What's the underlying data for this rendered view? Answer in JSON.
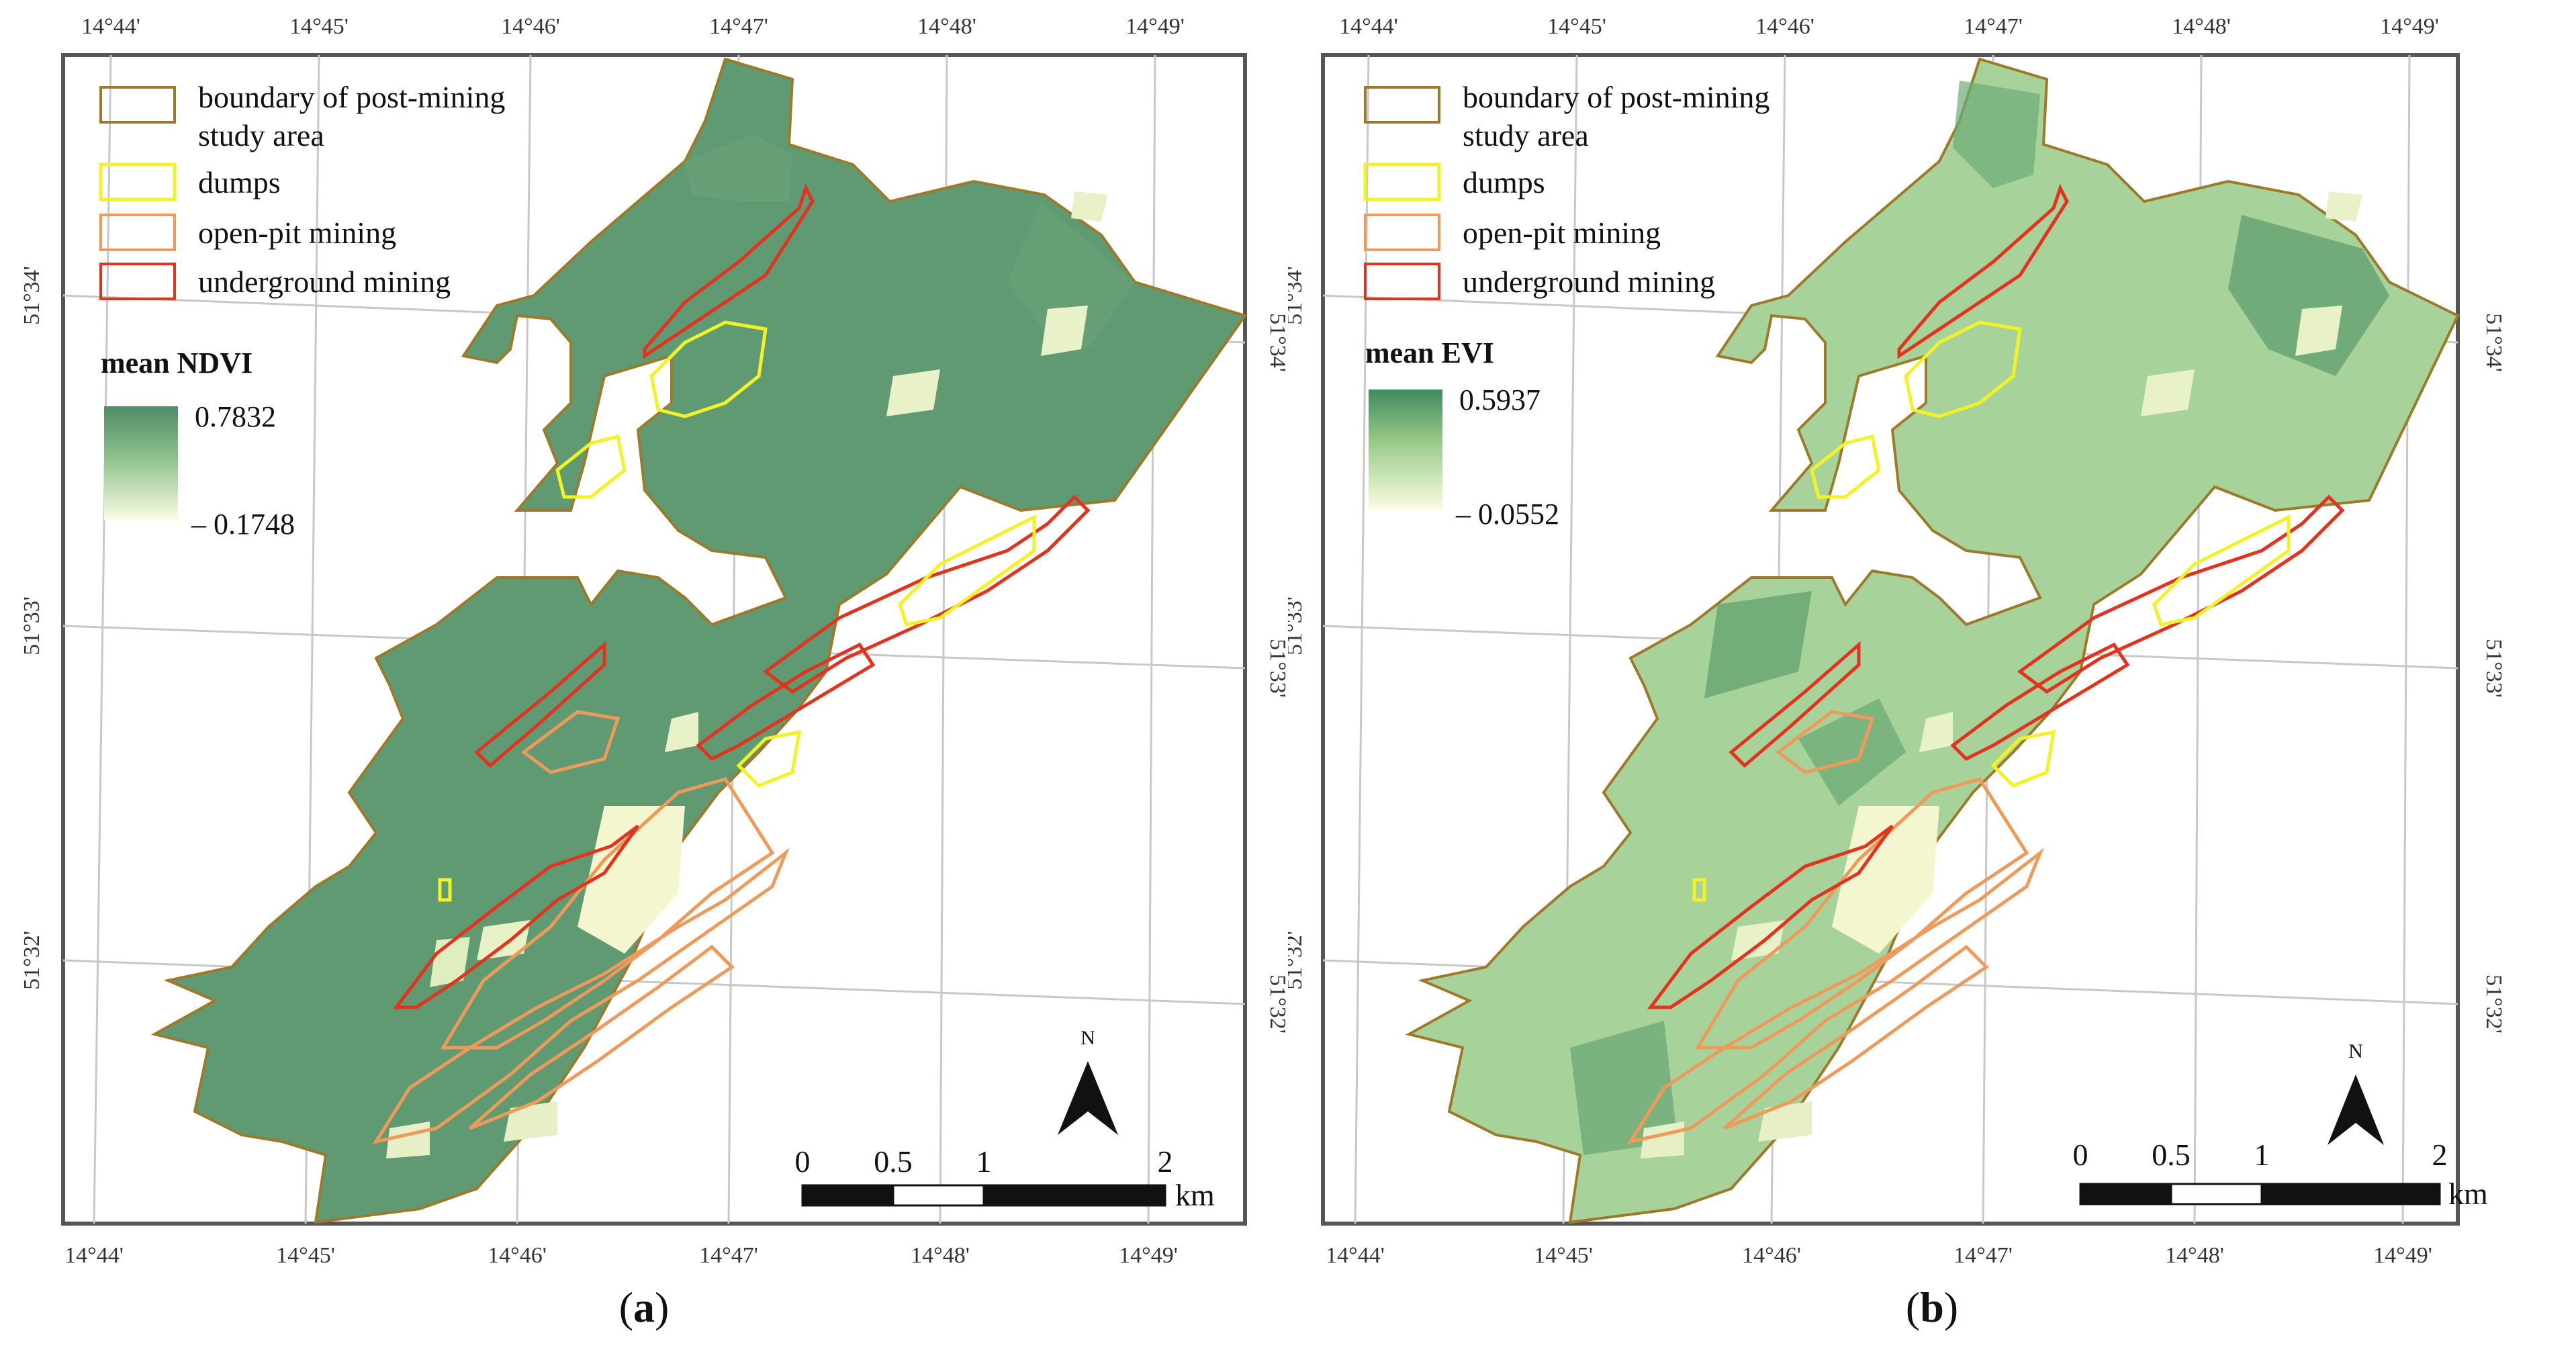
{
  "legend": {
    "boundary_line1": "boundary of post-mining",
    "boundary_line2": "study area",
    "dumps": "dumps",
    "open_pit": "open-pit mining",
    "underground": "underground mining"
  },
  "colors": {
    "boundary": "#9c7a2a",
    "dumps": "#f2f229",
    "open_pit": "#ee9a5a",
    "underground": "#e2331f",
    "ramp_high": "#4f8c68",
    "ramp_low": "#fbfde5",
    "graticule": "#c8c8c8",
    "frame": "#555555"
  },
  "coords": {
    "lon": [
      "14°44'",
      "14°45'",
      "14°46'",
      "14°47'",
      "14°48'",
      "14°49'"
    ],
    "lat": [
      "51°34'",
      "51°33'",
      "51°32'"
    ]
  },
  "scale_bar": {
    "labels": [
      "0",
      "0.5",
      "1",
      "2"
    ],
    "unit": "km"
  },
  "north_arrow": "N",
  "panels": [
    {
      "ramp_title": "mean NDVI",
      "max": "0.7832",
      "min": "– 0.1748",
      "label_paren_open": "(",
      "label_letter": "a",
      "label_paren_close": ")"
    },
    {
      "ramp_title": "mean EVI",
      "max": "0.5937",
      "min": "– 0.0552",
      "label_paren_open": "(",
      "label_letter": "b",
      "label_paren_close": ")"
    }
  ]
}
